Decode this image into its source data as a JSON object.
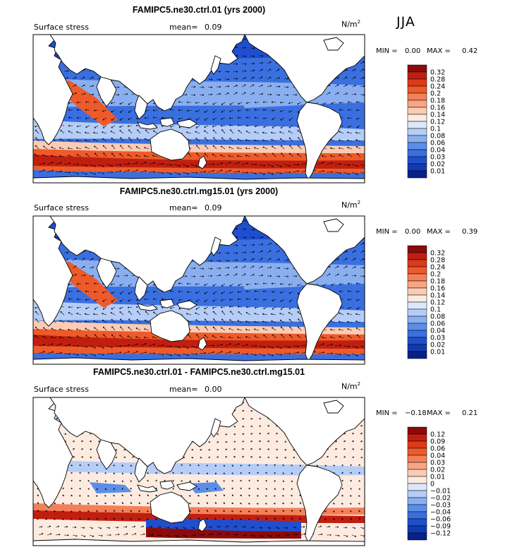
{
  "season_label": "JJA",
  "panels": [
    {
      "title": "FAMIPC5.ne30.ctrl.01 (yrs 2000)",
      "variable": "Surface stress",
      "mean_label": "mean=",
      "mean_value": "0.09",
      "units": "N/m",
      "units_sup": "2",
      "min_label": "MIN =",
      "min_value": "0.00",
      "max_label": "MAX =",
      "max_value": "0.42",
      "colorbar_levels": [
        "0.32",
        "0.28",
        "0.24",
        "0.2",
        "0.18",
        "0.16",
        "0.14",
        "0.12",
        "0.1",
        "0.08",
        "0.06",
        "0.04",
        "0.03",
        "0.02",
        "0.01"
      ],
      "colorbar_colors": [
        "#8b0a0a",
        "#c01f10",
        "#dc3a18",
        "#ee5a2a",
        "#f4805a",
        "#f7a684",
        "#fbcbb3",
        "#fdebe0",
        "#dce7fb",
        "#b5cdf7",
        "#8aaff0",
        "#5b8ee8",
        "#3a6fe0",
        "#1f4fcf",
        "#123ab0",
        "#08208a"
      ]
    },
    {
      "title": "FAMIPC5.ne30.ctrl.mg15.01 (yrs 2000)",
      "variable": "Surface stress",
      "mean_label": "mean=",
      "mean_value": "0.09",
      "units": "N/m",
      "units_sup": "2",
      "min_label": "MIN =",
      "min_value": "0.00",
      "max_label": "MAX =",
      "max_value": "0.39",
      "colorbar_levels": [
        "0.32",
        "0.28",
        "0.24",
        "0.2",
        "0.18",
        "0.16",
        "0.14",
        "0.12",
        "0.1",
        "0.08",
        "0.06",
        "0.04",
        "0.03",
        "0.02",
        "0.01"
      ],
      "colorbar_colors": [
        "#8b0a0a",
        "#c01f10",
        "#dc3a18",
        "#ee5a2a",
        "#f4805a",
        "#f7a684",
        "#fbcbb3",
        "#fdebe0",
        "#dce7fb",
        "#b5cdf7",
        "#8aaff0",
        "#5b8ee8",
        "#3a6fe0",
        "#1f4fcf",
        "#123ab0",
        "#08208a"
      ]
    },
    {
      "title": "FAMIPC5.ne30.ctrl.01 - FAMIPC5.ne30.ctrl.mg15.01",
      "variable": "Surface stress",
      "mean_label": "mean=",
      "mean_value": "0.00",
      "units": "N/m",
      "units_sup": "2",
      "min_label": "MIN =",
      "min_value": "−0.18",
      "max_label": "MAX =",
      "max_value": "0.21",
      "colorbar_levels": [
        "0.12",
        "0.09",
        "0.06",
        "0.04",
        "0.03",
        "0.02",
        "0.01",
        "0",
        "−0.01",
        "−0.02",
        "−0.03",
        "−0.04",
        "−0.06",
        "−0.09",
        "−0.12"
      ],
      "colorbar_colors": [
        "#8b0a0a",
        "#c01f10",
        "#dc3a18",
        "#ee5a2a",
        "#f4805a",
        "#f7a684",
        "#fbcbb3",
        "#fdebe0",
        "#dce7fb",
        "#b5cdf7",
        "#8aaff0",
        "#5b8ee8",
        "#3a6fe0",
        "#1f4fcf",
        "#123ab0",
        "#08208a"
      ]
    }
  ],
  "chart_data": {
    "type": "heatmap",
    "field": "Surface stress",
    "units": "N/m2",
    "season": "JJA",
    "maps": [
      {
        "title": "FAMIPC5.ne30.ctrl.01 (yrs 2000)",
        "mean": 0.09,
        "min": 0.0,
        "max": 0.42,
        "contour_levels": [
          0.01,
          0.02,
          0.03,
          0.04,
          0.06,
          0.08,
          0.1,
          0.12,
          0.14,
          0.16,
          0.18,
          0.2,
          0.24,
          0.28,
          0.32
        ]
      },
      {
        "title": "FAMIPC5.ne30.ctrl.mg15.01 (yrs 2000)",
        "mean": 0.09,
        "min": 0.0,
        "max": 0.39,
        "contour_levels": [
          0.01,
          0.02,
          0.03,
          0.04,
          0.06,
          0.08,
          0.1,
          0.12,
          0.14,
          0.16,
          0.18,
          0.2,
          0.24,
          0.28,
          0.32
        ]
      },
      {
        "title": "FAMIPC5.ne30.ctrl.01 - FAMIPC5.ne30.ctrl.mg15.01",
        "mean": 0.0,
        "min": -0.18,
        "max": 0.21,
        "contour_levels": [
          -0.12,
          -0.09,
          -0.06,
          -0.04,
          -0.03,
          -0.02,
          -0.01,
          0,
          0.01,
          0.02,
          0.03,
          0.04,
          0.06,
          0.09,
          0.12
        ]
      }
    ]
  }
}
